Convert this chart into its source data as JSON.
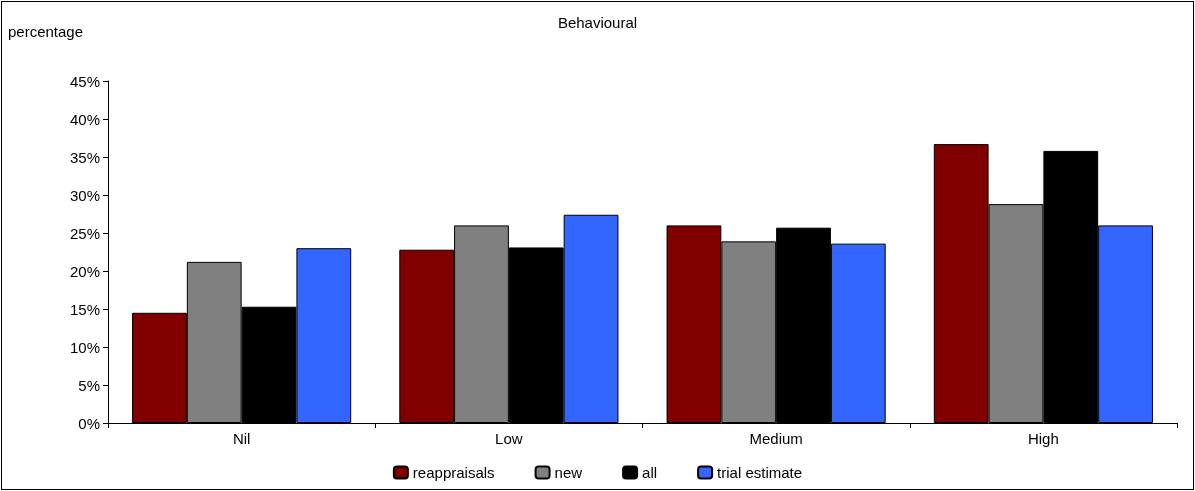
{
  "chart_data": {
    "type": "bar",
    "title": "Behavioural",
    "ylabel": "percentage",
    "categories": [
      "Nil",
      "Low",
      "Medium",
      "High"
    ],
    "series": [
      {
        "name": "reappraisals",
        "color": "#800000",
        "values": [
          14.5,
          22.8,
          26.0,
          36.7
        ]
      },
      {
        "name": "new",
        "color": "#808080",
        "values": [
          21.2,
          26.0,
          23.9,
          28.8
        ]
      },
      {
        "name": "all",
        "color": "#000000",
        "values": [
          15.3,
          23.1,
          25.7,
          35.8
        ]
      },
      {
        "name": "trial estimate",
        "color": "#3366ff",
        "values": [
          23.0,
          27.4,
          23.6,
          26.0
        ]
      }
    ],
    "ylim": [
      0,
      45
    ],
    "yticks": [
      {
        "value": 0,
        "label": "0%"
      },
      {
        "value": 5,
        "label": "5%"
      },
      {
        "value": 10,
        "label": "10%"
      },
      {
        "value": 15,
        "label": "15%"
      },
      {
        "value": 20,
        "label": "20%"
      },
      {
        "value": 25,
        "label": "25%"
      },
      {
        "value": 30,
        "label": "30%"
      },
      {
        "value": 35,
        "label": "35%"
      },
      {
        "value": 40,
        "label": "40%"
      },
      {
        "value": 45,
        "label": "45%"
      }
    ],
    "grid": false,
    "legend": "bottom"
  }
}
